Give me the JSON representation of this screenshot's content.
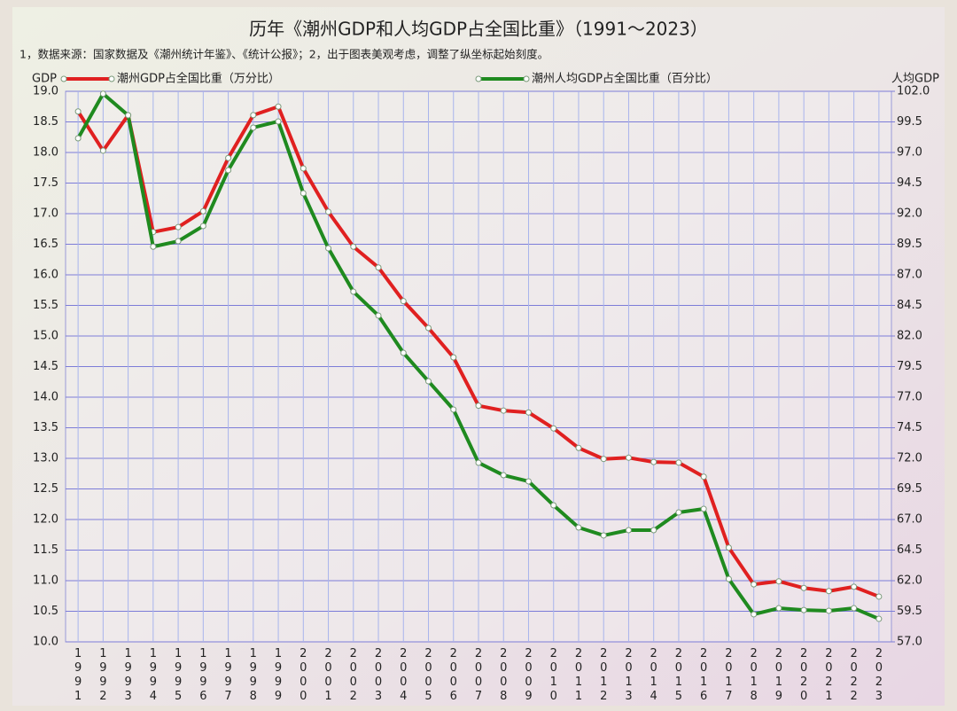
{
  "chart_data": {
    "type": "line",
    "title": "历年《潮州GDP和人均GDP占全国比重》（1991～2023）",
    "subtitle": "1，数据来源：国家数据及《潮州统计年鉴》、《统计公报》；2，出于图表美观考虑，调整了纵坐标起始刻度。",
    "y_label": "GDP",
    "y2_label": "人均GDP",
    "categories": [
      "1991",
      "1992",
      "1993",
      "1994",
      "1995",
      "1996",
      "1997",
      "1998",
      "1999",
      "2000",
      "2001",
      "2002",
      "2003",
      "2004",
      "2005",
      "2006",
      "2007",
      "2008",
      "2009",
      "2010",
      "2011",
      "2012",
      "2013",
      "2014",
      "2015",
      "2016",
      "2017",
      "2018",
      "2019",
      "2020",
      "2021",
      "2022",
      "2023"
    ],
    "series": [
      {
        "name": "潮州GDP占全国比重（万分比）",
        "color": "#e02020",
        "axis": "y",
        "values": [
          18.67,
          18.03,
          18.61,
          16.7,
          16.78,
          17.04,
          17.91,
          18.61,
          18.75,
          17.74,
          17.03,
          16.46,
          16.12,
          15.57,
          15.13,
          14.65,
          13.86,
          13.78,
          13.75,
          13.49,
          13.17,
          12.99,
          13.01,
          12.94,
          12.93,
          12.7,
          11.54,
          10.94,
          10.99,
          10.88,
          10.83,
          10.9,
          10.74
        ]
      },
      {
        "name": "潮州人均GDP占全国比重（百分比）",
        "color": "#1f8a1f",
        "axis": "y2",
        "values": [
          98.16,
          101.8,
          100.04,
          89.3,
          89.75,
          90.99,
          95.55,
          99.03,
          99.54,
          93.67,
          89.17,
          85.62,
          83.67,
          80.62,
          78.3,
          75.99,
          71.64,
          70.62,
          70.12,
          68.16,
          66.35,
          65.7,
          66.13,
          66.13,
          67.58,
          67.87,
          62.14,
          59.25,
          59.75,
          59.6,
          59.54,
          59.75,
          58.88
        ]
      }
    ],
    "ylim": [
      10,
      19
    ],
    "yticks": [
      {
        "value": 10,
        "label": "10.0"
      },
      10.5,
      {
        "value": 11,
        "label": "11.0"
      },
      11.5,
      {
        "value": 12,
        "label": "12.0"
      },
      12.5,
      {
        "value": 13,
        "label": "13.0"
      },
      13.5,
      {
        "value": 14,
        "label": "14.0"
      },
      14.5,
      {
        "value": 15,
        "label": "15.0"
      },
      15.5,
      {
        "value": 16,
        "label": "16.0"
      },
      16.5,
      {
        "value": 17,
        "label": "17.0"
      },
      17.5,
      {
        "value": 18,
        "label": "18.0"
      },
      18.5,
      {
        "value": 19,
        "label": "19.0"
      }
    ],
    "y2lim": [
      57,
      102
    ],
    "y2ticks": [
      {
        "value": 57,
        "label": "57.0"
      },
      59.5,
      {
        "value": 62,
        "label": "62.0"
      },
      64.5,
      {
        "value": 67,
        "label": "67.0"
      },
      69.5,
      {
        "value": 72,
        "label": "72.0"
      },
      74.5,
      {
        "value": 77,
        "label": "77.0"
      },
      79.5,
      {
        "value": 82,
        "label": "82.0"
      },
      84.5,
      {
        "value": 87,
        "label": "87.0"
      },
      89.5,
      {
        "value": 92,
        "label": "92.0"
      },
      94.5,
      {
        "value": 97,
        "label": "97.0"
      },
      99.5,
      {
        "value": 102,
        "label": "102.0"
      }
    ],
    "grid": true
  }
}
